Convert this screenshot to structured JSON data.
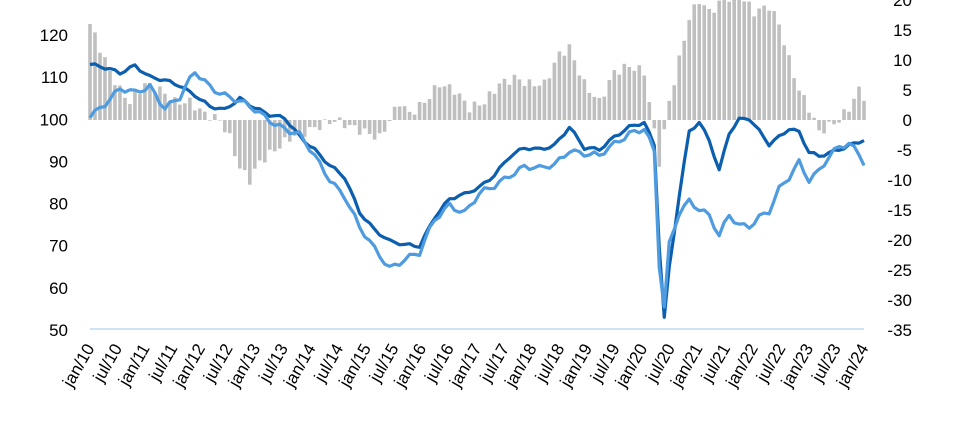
{
  "chart_data": {
    "type": "bar+line",
    "x_tick_labels": [
      "jan/10",
      "jul/10",
      "jan/11",
      "jul/11",
      "jan/12",
      "jul/12",
      "jan/13",
      "jul/13",
      "jan/14",
      "jul/14",
      "jan/15",
      "jul/15",
      "jan/16",
      "jul/16",
      "jan/17",
      "jul/17",
      "jan/18",
      "jul/18",
      "jan/19",
      "jul/19",
      "jan/20",
      "jul/20",
      "jan/21",
      "jul/21",
      "jan/22",
      "jul/22",
      "jan/23",
      "jul/23",
      "jan/24"
    ],
    "y_left": {
      "ticks": [
        "50",
        "60",
        "70",
        "80",
        "90",
        "100",
        "110",
        "120"
      ],
      "ylim": [
        50,
        122
      ]
    },
    "y_right": {
      "ticks": [
        "-35",
        "-30",
        "-25",
        "-20",
        "-15",
        "-10",
        "-5",
        "0",
        "5",
        "10",
        "15",
        "20"
      ],
      "ylim": [
        -35,
        20.5
      ]
    },
    "colors": {
      "bars": "#bfbfbf",
      "series_dark": "#0b5fae",
      "series_light": "#4f9be0",
      "baseline": "#cfe3f5"
    },
    "bar_anchors": [
      [
        0,
        16
      ],
      [
        2,
        12
      ],
      [
        4,
        8
      ],
      [
        6,
        5
      ],
      [
        8,
        3
      ],
      [
        11,
        6
      ],
      [
        14,
        5
      ],
      [
        17,
        3
      ],
      [
        20,
        3
      ],
      [
        23,
        1
      ],
      [
        26,
        0
      ],
      [
        28,
        -3
      ],
      [
        30,
        -8
      ],
      [
        32,
        -10
      ],
      [
        34,
        -7
      ],
      [
        37,
        -5
      ],
      [
        40,
        -3
      ],
      [
        43,
        -2
      ],
      [
        46,
        -1
      ],
      [
        49,
        0
      ],
      [
        52,
        -1
      ],
      [
        55,
        -2
      ],
      [
        58,
        -3
      ],
      [
        60,
        0
      ],
      [
        62,
        3
      ],
      [
        64,
        1
      ],
      [
        67,
        3
      ],
      [
        70,
        6
      ],
      [
        73,
        5
      ],
      [
        76,
        2
      ],
      [
        79,
        3
      ],
      [
        82,
        6
      ],
      [
        85,
        7
      ],
      [
        88,
        6
      ],
      [
        91,
        6
      ],
      [
        94,
        11
      ],
      [
        96,
        12
      ],
      [
        99,
        6
      ],
      [
        102,
        3
      ],
      [
        105,
        8
      ],
      [
        108,
        9
      ],
      [
        111,
        8
      ],
      [
        114,
        -7
      ],
      [
        116,
        3
      ],
      [
        118,
        10
      ],
      [
        120,
        17
      ],
      [
        122,
        20
      ],
      [
        124,
        18
      ],
      [
        127,
        20
      ],
      [
        130,
        21
      ],
      [
        133,
        18
      ],
      [
        136,
        19
      ],
      [
        138,
        16
      ],
      [
        140,
        10
      ],
      [
        142,
        5
      ],
      [
        144,
        2
      ],
      [
        146,
        -2
      ],
      [
        148,
        -1
      ],
      [
        150,
        0
      ],
      [
        152,
        2
      ],
      [
        154,
        5
      ],
      [
        155,
        4
      ]
    ],
    "series": [
      {
        "color": "dark",
        "anchors": [
          [
            0,
            113
          ],
          [
            3,
            112
          ],
          [
            6,
            111
          ],
          [
            9,
            113
          ],
          [
            12,
            110
          ],
          [
            15,
            109
          ],
          [
            18,
            108
          ],
          [
            21,
            106
          ],
          [
            24,
            103
          ],
          [
            27,
            102
          ],
          [
            30,
            105
          ],
          [
            33,
            103
          ],
          [
            36,
            101
          ],
          [
            39,
            100
          ],
          [
            42,
            96
          ],
          [
            45,
            93
          ],
          [
            48,
            89
          ],
          [
            51,
            86
          ],
          [
            54,
            78
          ],
          [
            57,
            74
          ],
          [
            60,
            71
          ],
          [
            63,
            70
          ],
          [
            66,
            70
          ],
          [
            69,
            77
          ],
          [
            72,
            81
          ],
          [
            75,
            82
          ],
          [
            78,
            84
          ],
          [
            81,
            87
          ],
          [
            84,
            91
          ],
          [
            87,
            93
          ],
          [
            90,
            93
          ],
          [
            93,
            94
          ],
          [
            96,
            98
          ],
          [
            99,
            93
          ],
          [
            102,
            93
          ],
          [
            105,
            96
          ],
          [
            108,
            98
          ],
          [
            111,
            99
          ],
          [
            113,
            94
          ],
          [
            114,
            70
          ],
          [
            115,
            53
          ],
          [
            116,
            65
          ],
          [
            118,
            82
          ],
          [
            120,
            97
          ],
          [
            122,
            99
          ],
          [
            124,
            95
          ],
          [
            126,
            88
          ],
          [
            128,
            97
          ],
          [
            130,
            100
          ],
          [
            132,
            100
          ],
          [
            134,
            97
          ],
          [
            136,
            94
          ],
          [
            138,
            96
          ],
          [
            140,
            98
          ],
          [
            142,
            97
          ],
          [
            144,
            92
          ],
          [
            146,
            91
          ],
          [
            148,
            92
          ],
          [
            150,
            93
          ],
          [
            152,
            94
          ],
          [
            155,
            95
          ]
        ]
      },
      {
        "color": "light",
        "anchors": [
          [
            0,
            101
          ],
          [
            3,
            104
          ],
          [
            6,
            107
          ],
          [
            9,
            106
          ],
          [
            12,
            108
          ],
          [
            15,
            103
          ],
          [
            18,
            105
          ],
          [
            21,
            111
          ],
          [
            24,
            108
          ],
          [
            27,
            106
          ],
          [
            30,
            104
          ],
          [
            33,
            102
          ],
          [
            36,
            100
          ],
          [
            39,
            98
          ],
          [
            42,
            96
          ],
          [
            45,
            91
          ],
          [
            48,
            86
          ],
          [
            51,
            82
          ],
          [
            54,
            74
          ],
          [
            57,
            69
          ],
          [
            60,
            65
          ],
          [
            63,
            67
          ],
          [
            66,
            68
          ],
          [
            69,
            76
          ],
          [
            72,
            80
          ],
          [
            75,
            78
          ],
          [
            78,
            82
          ],
          [
            81,
            84
          ],
          [
            84,
            87
          ],
          [
            87,
            89
          ],
          [
            90,
            88
          ],
          [
            93,
            89
          ],
          [
            96,
            93
          ],
          [
            99,
            92
          ],
          [
            102,
            91
          ],
          [
            105,
            94
          ],
          [
            108,
            97
          ],
          [
            111,
            98
          ],
          [
            113,
            92
          ],
          [
            114,
            65
          ],
          [
            115,
            55
          ],
          [
            116,
            70
          ],
          [
            118,
            78
          ],
          [
            120,
            81
          ],
          [
            122,
            79
          ],
          [
            124,
            77
          ],
          [
            126,
            72
          ],
          [
            128,
            77
          ],
          [
            130,
            75
          ],
          [
            132,
            75
          ],
          [
            134,
            77
          ],
          [
            136,
            78
          ],
          [
            138,
            83
          ],
          [
            140,
            86
          ],
          [
            142,
            90
          ],
          [
            144,
            86
          ],
          [
            146,
            88
          ],
          [
            148,
            91
          ],
          [
            150,
            93
          ],
          [
            152,
            94
          ],
          [
            154,
            92
          ],
          [
            155,
            90
          ]
        ]
      }
    ],
    "title": "",
    "xlabel": "",
    "ylabel": "",
    "grid": false,
    "legend": "none visible"
  }
}
